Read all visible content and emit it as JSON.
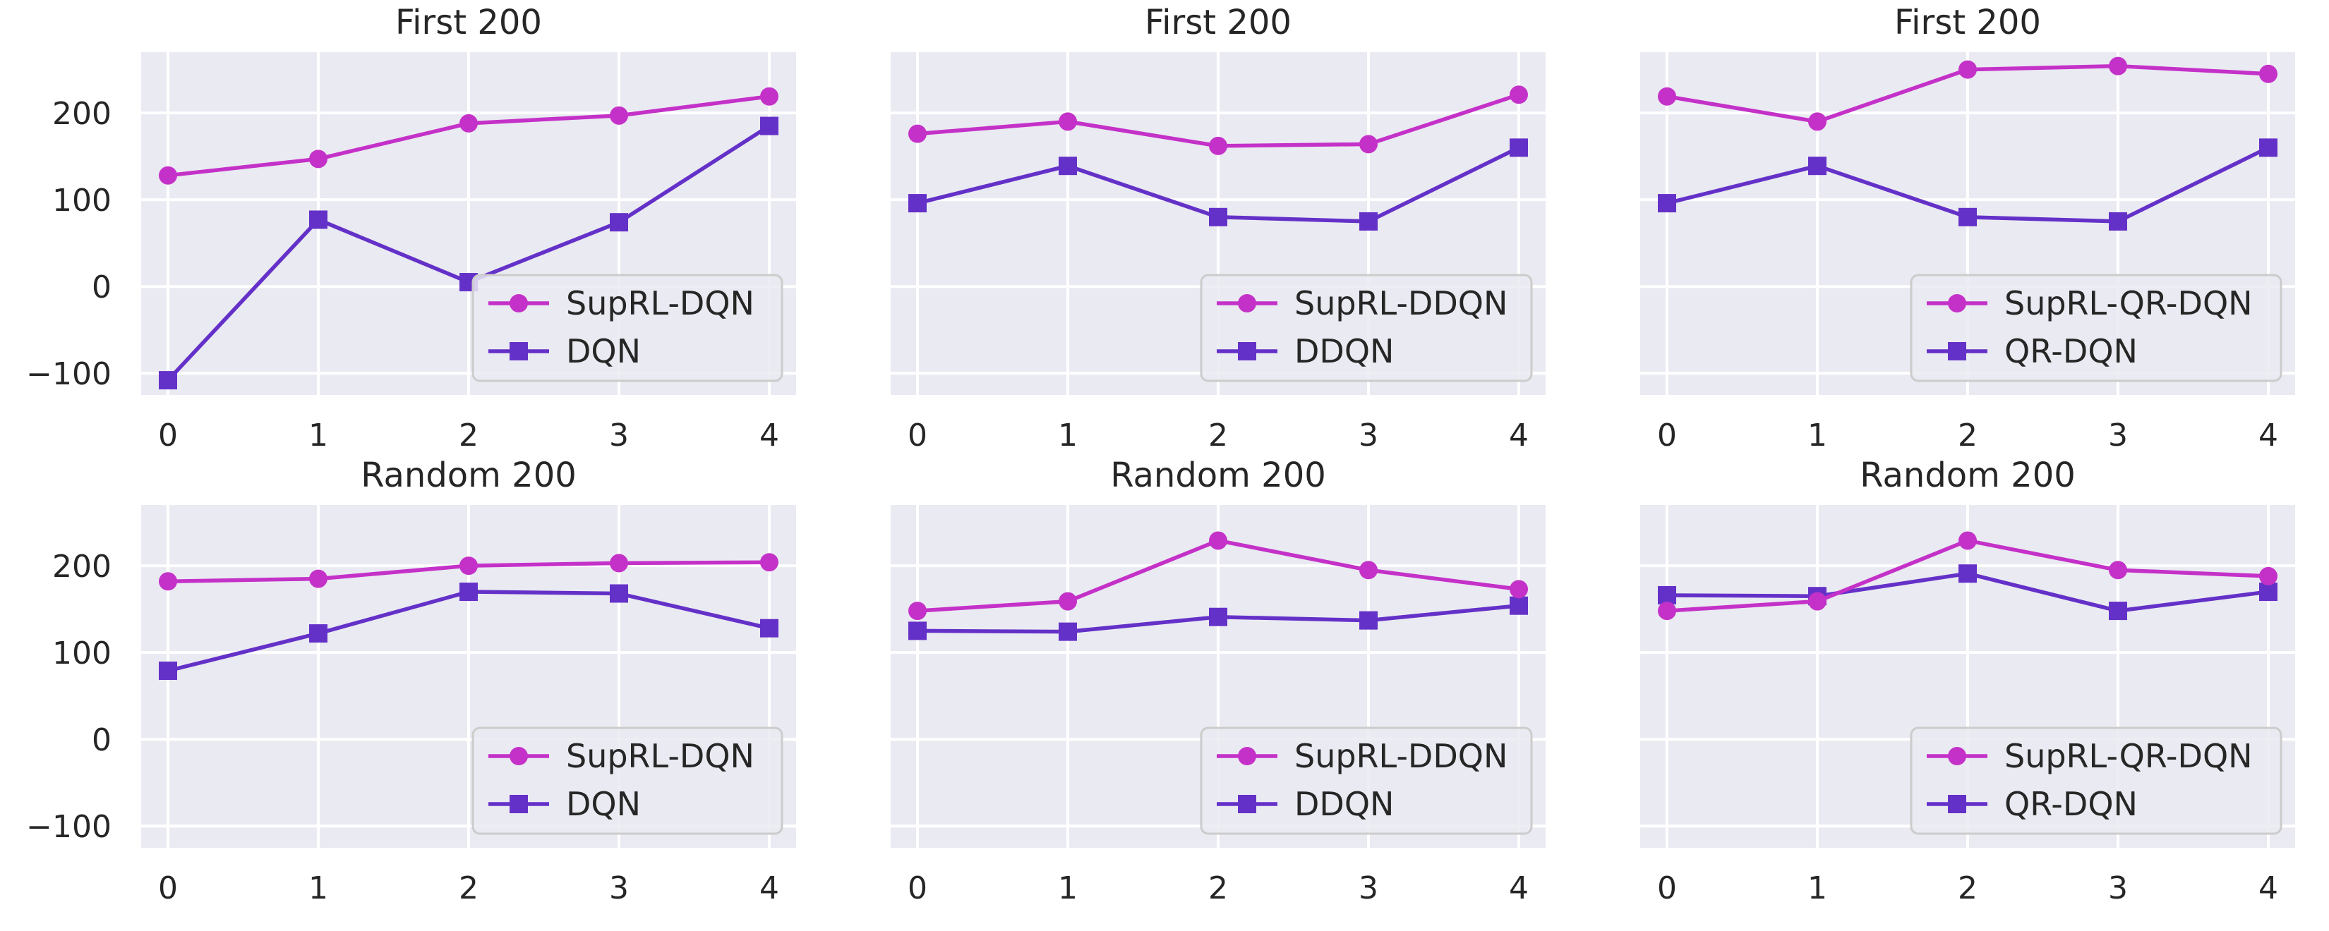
{
  "colors": {
    "suprl": "#c431c8",
    "baseline": "#6431c8"
  },
  "chart_data": [
    {
      "type": "line",
      "title": "First 200",
      "x": [
        0,
        1,
        2,
        3,
        4
      ],
      "ylim": [
        -125,
        270
      ],
      "yticks": [
        -100,
        0,
        100,
        200
      ],
      "show_yticks": true,
      "legend": "lower-right",
      "series": [
        {
          "name": "SupRL-DQN",
          "marker": "circle",
          "values": [
            128,
            147,
            188,
            197,
            219
          ]
        },
        {
          "name": "DQN",
          "marker": "square",
          "values": [
            -108,
            77,
            5,
            74,
            185
          ]
        }
      ]
    },
    {
      "type": "line",
      "title": "First 200",
      "x": [
        0,
        1,
        2,
        3,
        4
      ],
      "ylim": [
        -125,
        270
      ],
      "yticks": [
        -100,
        0,
        100,
        200
      ],
      "show_yticks": false,
      "legend": "lower-right",
      "series": [
        {
          "name": "SupRL-DDQN",
          "marker": "circle",
          "values": [
            176,
            190,
            162,
            164,
            221
          ]
        },
        {
          "name": "DDQN",
          "marker": "square",
          "values": [
            96,
            139,
            80,
            75,
            160
          ]
        }
      ]
    },
    {
      "type": "line",
      "title": "First 200",
      "x": [
        0,
        1,
        2,
        3,
        4
      ],
      "ylim": [
        -125,
        270
      ],
      "yticks": [
        -100,
        0,
        100,
        200
      ],
      "show_yticks": false,
      "legend": "lower-right",
      "series": [
        {
          "name": "SupRL-QR-DQN",
          "marker": "circle",
          "values": [
            219,
            190,
            250,
            254,
            245
          ]
        },
        {
          "name": "QR-DQN",
          "marker": "square",
          "values": [
            96,
            139,
            80,
            75,
            160
          ]
        }
      ]
    },
    {
      "type": "line",
      "title": "Random 200",
      "x": [
        0,
        1,
        2,
        3,
        4
      ],
      "ylim": [
        -125,
        270
      ],
      "yticks": [
        -100,
        0,
        100,
        200
      ],
      "show_yticks": true,
      "legend": "lower-right",
      "series": [
        {
          "name": "SupRL-DQN",
          "marker": "circle",
          "values": [
            182,
            185,
            200,
            203,
            204
          ]
        },
        {
          "name": "DQN",
          "marker": "square",
          "values": [
            79,
            122,
            170,
            168,
            128
          ]
        }
      ]
    },
    {
      "type": "line",
      "title": "Random 200",
      "x": [
        0,
        1,
        2,
        3,
        4
      ],
      "ylim": [
        -125,
        270
      ],
      "yticks": [
        -100,
        0,
        100,
        200
      ],
      "show_yticks": false,
      "legend": "lower-right",
      "series": [
        {
          "name": "SupRL-DDQN",
          "marker": "circle",
          "values": [
            148,
            159,
            229,
            195,
            173
          ]
        },
        {
          "name": "DDQN",
          "marker": "square",
          "values": [
            125,
            124,
            141,
            137,
            154
          ]
        }
      ]
    },
    {
      "type": "line",
      "title": "Random 200",
      "x": [
        0,
        1,
        2,
        3,
        4
      ],
      "ylim": [
        -125,
        270
      ],
      "yticks": [
        -100,
        0,
        100,
        200
      ],
      "show_yticks": false,
      "legend": "lower-right",
      "series": [
        {
          "name": "SupRL-QR-DQN",
          "marker": "circle",
          "values": [
            148,
            159,
            229,
            195,
            188
          ]
        },
        {
          "name": "QR-DQN",
          "marker": "square",
          "values": [
            166,
            165,
            191,
            148,
            170
          ]
        }
      ]
    }
  ]
}
